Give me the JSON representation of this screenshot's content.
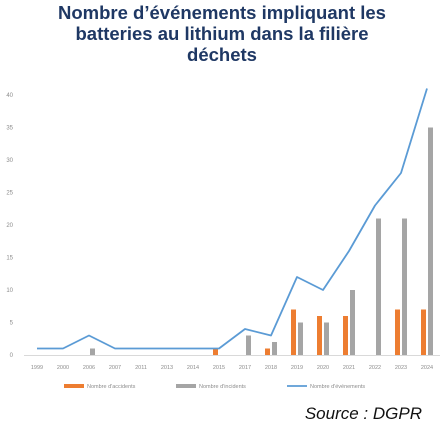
{
  "title": {
    "line1": "Nombre d’événements impliquant les",
    "line2": "batteries au lithium dans la filière",
    "line3": "déchets"
  },
  "source": "Source : DGPR",
  "chart_data": {
    "type": "bar",
    "title": "Nombre d’événements impliquant les batteries au lithium dans la filière déchets",
    "categories": [
      "1999",
      "2000",
      "2006",
      "2007",
      "2011",
      "2013",
      "2014",
      "2015",
      "2017",
      "2018",
      "2019",
      "2020",
      "2021",
      "2022",
      "2023",
      "2024"
    ],
    "ylim": [
      0,
      40
    ],
    "yticks": [
      0,
      5,
      10,
      15,
      20,
      25,
      30,
      35,
      40
    ],
    "grid": false,
    "legend_position": "bottom",
    "series": [
      {
        "name": "Nombre d'accidents",
        "kind": "bar",
        "color": "#ed7d31",
        "values": [
          0,
          0,
          0,
          0,
          0,
          0,
          0,
          1,
          0,
          1,
          7,
          6,
          6,
          0,
          7,
          7
        ]
      },
      {
        "name": "Nombre d'incidents",
        "kind": "bar",
        "color": "#a5a5a5",
        "values": [
          0,
          0,
          1,
          0,
          0,
          0,
          0,
          0,
          3,
          2,
          5,
          5,
          10,
          21,
          21,
          35
        ]
      },
      {
        "name": "Nombre d'événements",
        "kind": "line",
        "color": "#5b9bd5",
        "values": [
          1,
          1,
          3,
          1,
          1,
          1,
          1,
          1,
          4,
          3,
          12,
          10,
          16,
          23,
          28,
          41
        ]
      }
    ]
  }
}
